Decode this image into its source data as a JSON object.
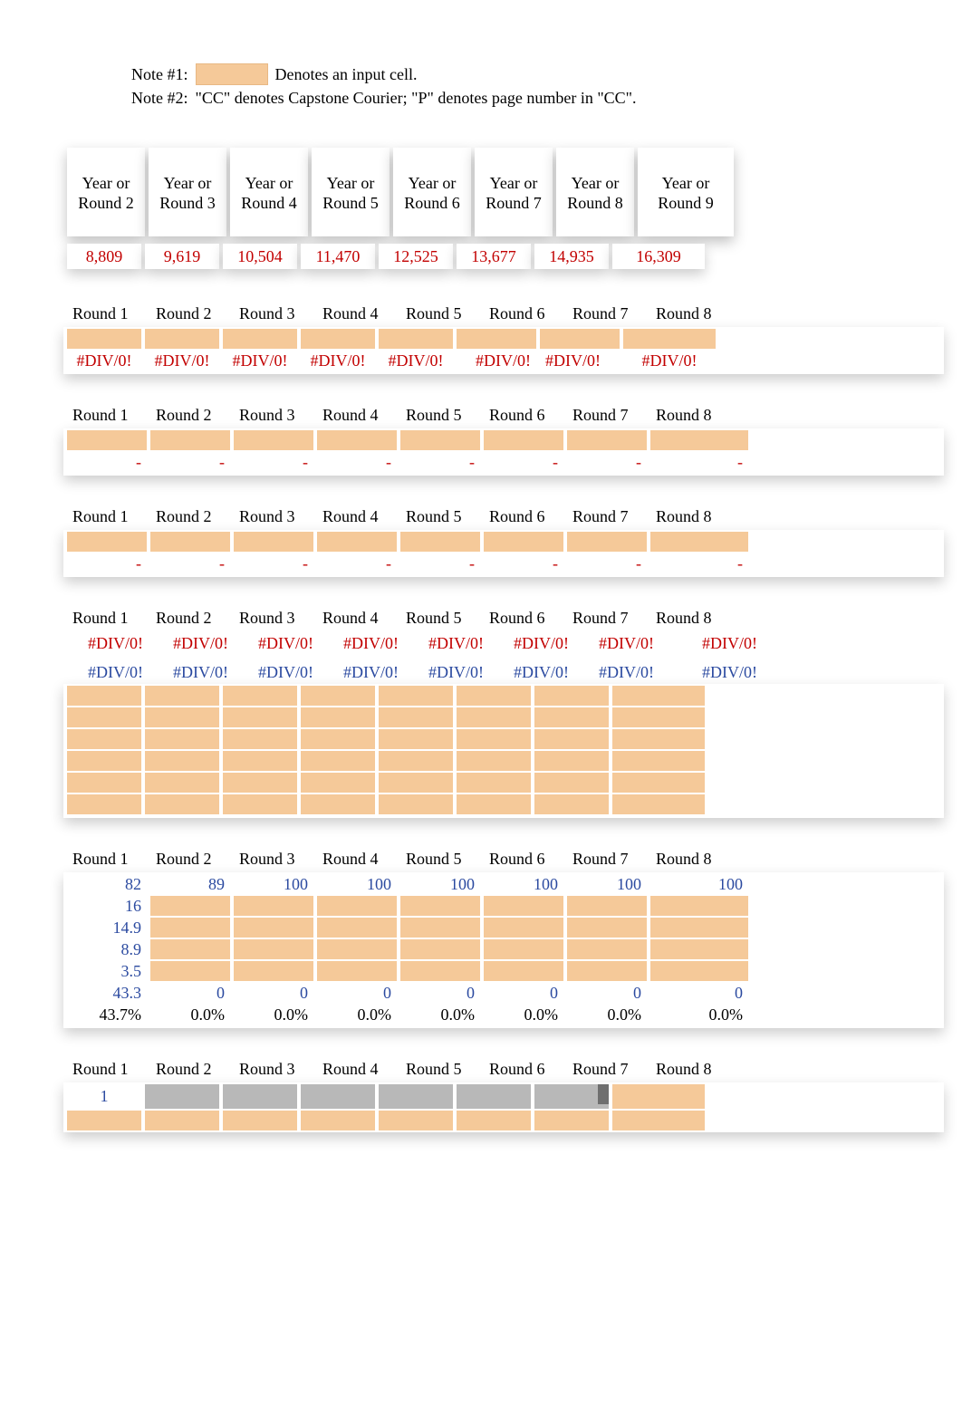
{
  "notes": {
    "note1_label": "Note #1:",
    "note1_text": "Denotes an input cell.",
    "note2_label": "Note #2:",
    "note2_text": "\"CC\" denotes Capstone Courier; \"P\" denotes page number in \"CC\"."
  },
  "colors": {
    "input_cell": "#f5c999",
    "red_text": "#c20000",
    "blue_text": "#2b4aa0",
    "background": "#ffffff",
    "gray_row": "#b8b8b8",
    "dark_notch": "#6f6f6f"
  },
  "section1": {
    "headers": [
      "Year or Round 2",
      "Year or Round 3",
      "Year or Round 4",
      "Year or Round 5",
      "Year or Round 6",
      "Year or Round 7",
      "Year or Round 8",
      "Year or Round 9"
    ],
    "values": [
      "8,809",
      "9,619",
      "10,504",
      "11,470",
      "12,525",
      "13,677",
      "14,935",
      "16,309"
    ]
  },
  "section2": {
    "headers": [
      "Round 1",
      "Round 2",
      "Round 3",
      "Round 4",
      "Round 5",
      "Round 6",
      "Round 7",
      "Round 8"
    ],
    "input_row": [
      "",
      "",
      "",
      "",
      "",
      "",
      "",
      ""
    ],
    "values": [
      "#DIV/0!",
      "#DIV/0!",
      "#DIV/0!",
      "#DIV/0!",
      "#DIV/0!",
      "#DIV/0!",
      "#DIV/0!",
      "#DIV/0!"
    ],
    "value_align": [
      "center",
      "center",
      "center",
      "center",
      "center",
      "right",
      "left",
      "center"
    ]
  },
  "section3": {
    "headers": [
      "Round 1",
      "Round 2",
      "Round 3",
      "Round 4",
      "Round 5",
      "Round 6",
      "Round 7",
      "Round 8"
    ],
    "input_row": [
      "",
      "",
      "",
      "",
      "",
      "",
      "",
      ""
    ],
    "values": [
      "-",
      "-",
      "-",
      "-",
      "-",
      "-",
      "-",
      "-"
    ]
  },
  "section4": {
    "headers": [
      "Round 1",
      "Round 2",
      "Round 3",
      "Round 4",
      "Round 5",
      "Round 6",
      "Round 7",
      "Round 8"
    ],
    "input_row": [
      "",
      "",
      "",
      "",
      "",
      "",
      "",
      ""
    ],
    "values": [
      "-",
      "-",
      "-",
      "-",
      "-",
      "-",
      "-",
      "-"
    ]
  },
  "section5": {
    "headers": [
      "Round 1",
      "Round 2",
      "Round 3",
      "Round 4",
      "Round 5",
      "Round 6",
      "Round 7",
      "Round 8"
    ],
    "row_a": [
      "#DIV/0!",
      "#DIV/0!",
      "#DIV/0!",
      "#DIV/0!",
      "#DIV/0!",
      "#DIV/0!",
      "#DIV/0!",
      "#DIV/0!"
    ],
    "row_b": [
      "#DIV/0!",
      "#DIV/0!",
      "#DIV/0!",
      "#DIV/0!",
      "#DIV/0!",
      "#DIV/0!",
      "#DIV/0!",
      "#DIV/0!"
    ],
    "input_rows": 6
  },
  "section6": {
    "headers": [
      "Round 1",
      "Round 2",
      "Round 3",
      "Round 4",
      "Round 5",
      "Round 6",
      "Round 7",
      "Round 8"
    ],
    "row1": [
      "82",
      "89",
      "100",
      "100",
      "100",
      "100",
      "100",
      "100"
    ],
    "row2": [
      "16",
      "",
      "",
      "",
      "",
      "",
      "",
      ""
    ],
    "row3": [
      "14.9",
      "",
      "",
      "",
      "",
      "",
      "",
      ""
    ],
    "row4": [
      "8.9",
      "",
      "",
      "",
      "",
      "",
      "",
      ""
    ],
    "row5": [
      "3.5",
      "",
      "",
      "",
      "",
      "",
      "",
      ""
    ],
    "row6": [
      "43.3",
      "0",
      "0",
      "0",
      "0",
      "0",
      "0",
      "0"
    ],
    "row7": [
      "43.7%",
      "0.0%",
      "0.0%",
      "0.0%",
      "0.0%",
      "0.0%",
      "0.0%",
      "0.0%"
    ]
  },
  "section7": {
    "headers": [
      "Round 1",
      "Round 2",
      "Round 3",
      "Round 4",
      "Round 5",
      "Round 6",
      "Round 7",
      "Round 8"
    ],
    "value_first": "1"
  }
}
